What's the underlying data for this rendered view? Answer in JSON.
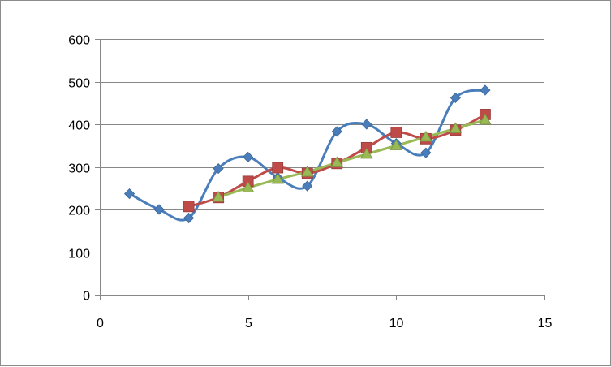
{
  "chart_data": {
    "type": "scatter",
    "title": "",
    "xlabel": "",
    "ylabel": "",
    "xlim": [
      0,
      15
    ],
    "ylim": [
      0,
      600
    ],
    "x_ticks": [
      0,
      5,
      10,
      15
    ],
    "y_ticks": [
      0,
      100,
      200,
      300,
      400,
      500,
      600
    ],
    "x_tick_labels": [
      "0",
      "5",
      "10",
      "15"
    ],
    "y_tick_labels": [
      "0",
      "100",
      "200",
      "300",
      "400",
      "500",
      "600"
    ],
    "grid": {
      "horizontal": true,
      "vertical": false
    },
    "legend": "none",
    "series": [
      {
        "marker": "diamond",
        "line": "smooth",
        "color": "#4a7ebb",
        "x": [
          1,
          2,
          3,
          4,
          5,
          6,
          7,
          8,
          9,
          10,
          11,
          12,
          13
        ],
        "y": [
          237,
          200,
          180,
          296,
          323,
          275,
          255,
          383,
          400,
          355,
          333,
          462,
          480
        ]
      },
      {
        "marker": "square",
        "line": "smooth",
        "color": "#be4b48",
        "x": [
          3,
          4,
          5,
          6,
          7,
          8,
          9,
          10,
          11,
          12,
          13
        ],
        "y": [
          207,
          228,
          266,
          298,
          285,
          308,
          345,
          381,
          366,
          386,
          423
        ]
      },
      {
        "marker": "triangle",
        "line": "straight",
        "color": "#98b954",
        "x": [
          4,
          5,
          6,
          7,
          8,
          9,
          10,
          11,
          12,
          13
        ],
        "y": [
          229,
          251,
          271,
          288,
          310,
          330,
          350,
          370,
          390,
          410
        ]
      }
    ]
  }
}
